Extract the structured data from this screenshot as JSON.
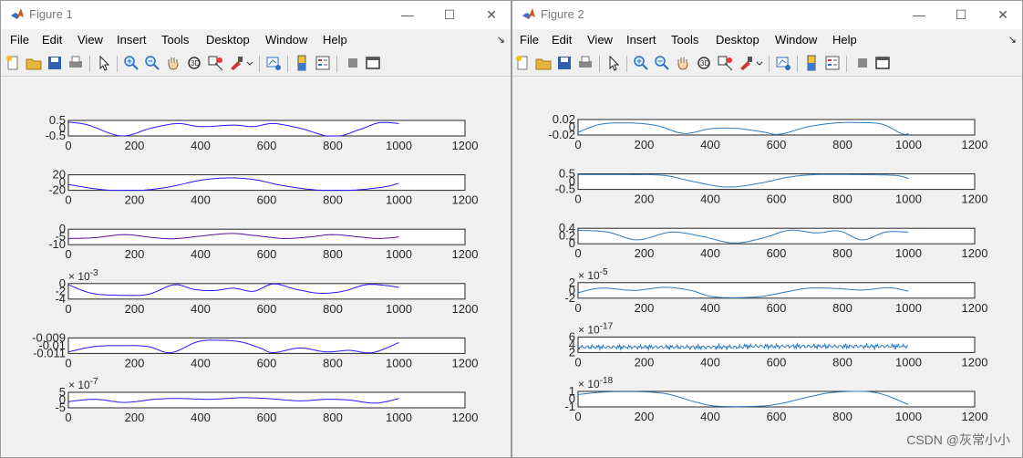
{
  "windows": [
    {
      "title": "Figure 1",
      "menu": [
        "File",
        "Edit",
        "View",
        "Insert",
        "Tools",
        "Desktop",
        "Window",
        "Help"
      ],
      "subplots": [
        {
          "yticks": [
            "0.5",
            "0",
            "-0.5"
          ],
          "xticks": [
            "0",
            "200",
            "400",
            "600",
            "800",
            "1000",
            "1200"
          ],
          "exponent": "",
          "exponent_power": "",
          "ylim": [
            -0.5,
            0.5
          ],
          "color": "#2a14ff",
          "curve": [
            [
              0,
              0.4
            ],
            [
              60,
              0.2
            ],
            [
              160,
              -0.5
            ],
            [
              250,
              0
            ],
            [
              330,
              0.3
            ],
            [
              400,
              0.1
            ],
            [
              500,
              0.2
            ],
            [
              560,
              0.1
            ],
            [
              620,
              0.3
            ],
            [
              700,
              0
            ],
            [
              800,
              -0.55
            ],
            [
              880,
              -0.1
            ],
            [
              940,
              0.35
            ],
            [
              1000,
              0.3
            ]
          ]
        },
        {
          "yticks": [
            "20",
            "0",
            "-20"
          ],
          "xticks": [
            "0",
            "200",
            "400",
            "600",
            "800",
            "1000",
            "1200"
          ],
          "exponent": "",
          "exponent_power": "",
          "ylim": [
            -20,
            20
          ],
          "color": "#2a14ff",
          "curve": [
            [
              0,
              -5
            ],
            [
              100,
              -18
            ],
            [
              200,
              -21
            ],
            [
              300,
              -12
            ],
            [
              400,
              6
            ],
            [
              480,
              12
            ],
            [
              560,
              8
            ],
            [
              650,
              -8
            ],
            [
              750,
              -19
            ],
            [
              850,
              -20
            ],
            [
              950,
              -12
            ],
            [
              1000,
              -2
            ]
          ]
        },
        {
          "yticks": [
            "0",
            "-5",
            "-10"
          ],
          "xticks": [
            "0",
            "200",
            "400",
            "600",
            "800",
            "1000",
            "1200"
          ],
          "exponent": "",
          "exponent_power": "",
          "ylim": [
            -10,
            0
          ],
          "color": "#5a0aa0",
          "curve": [
            [
              0,
              -6
            ],
            [
              80,
              -5.5
            ],
            [
              170,
              -3.5
            ],
            [
              260,
              -5.5
            ],
            [
              330,
              -6
            ],
            [
              480,
              -2.8
            ],
            [
              560,
              -4
            ],
            [
              650,
              -6
            ],
            [
              730,
              -5
            ],
            [
              800,
              -3.5
            ],
            [
              880,
              -5
            ],
            [
              940,
              -6
            ],
            [
              1000,
              -5
            ]
          ]
        },
        {
          "yticks": [
            "0",
            "-2",
            "-4"
          ],
          "xticks": [
            "0",
            "200",
            "400",
            "600",
            "800",
            "1000",
            "1200"
          ],
          "exponent": "× 10",
          "exponent_power": "-3",
          "ylim": [
            -4,
            0
          ],
          "color": "#2a14ff",
          "curve": [
            [
              0,
              -0.3
            ],
            [
              70,
              -2.5
            ],
            [
              150,
              -3
            ],
            [
              240,
              -2.8
            ],
            [
              320,
              -0.3
            ],
            [
              380,
              -1.5
            ],
            [
              440,
              -1.8
            ],
            [
              500,
              -1.2
            ],
            [
              560,
              -2
            ],
            [
              620,
              -0.1
            ],
            [
              690,
              -1.5
            ],
            [
              760,
              -2.5
            ],
            [
              830,
              -2
            ],
            [
              900,
              -0.3
            ],
            [
              960,
              -0.5
            ],
            [
              1000,
              -1
            ]
          ]
        },
        {
          "yticks": [
            "-0.009",
            "-0.01",
            "-0.011"
          ],
          "xticks": [
            "0",
            "200",
            "400",
            "600",
            "800",
            "1000",
            "1200"
          ],
          "exponent": "",
          "exponent_power": "",
          "ylim": [
            -0.011,
            -0.009
          ],
          "color": "#2a14ff",
          "curve": [
            [
              0,
              -0.0108
            ],
            [
              80,
              -0.0101
            ],
            [
              160,
              -0.01
            ],
            [
              240,
              -0.0101
            ],
            [
              310,
              -0.0109
            ],
            [
              390,
              -0.0095
            ],
            [
              450,
              -0.0093
            ],
            [
              520,
              -0.0095
            ],
            [
              580,
              -0.0103
            ],
            [
              620,
              -0.0109
            ],
            [
              700,
              -0.0103
            ],
            [
              780,
              -0.0108
            ],
            [
              850,
              -0.0106
            ],
            [
              920,
              -0.0109
            ],
            [
              1000,
              -0.0096
            ]
          ]
        },
        {
          "yticks": [
            "5",
            "0",
            "-5"
          ],
          "xticks": [
            "0",
            "200",
            "400",
            "600",
            "800",
            "1000",
            "1200"
          ],
          "exponent": "× 10",
          "exponent_power": "-7",
          "ylim": [
            -5,
            5
          ],
          "color": "#2a14ff",
          "curve": [
            [
              0,
              -1
            ],
            [
              80,
              0.5
            ],
            [
              170,
              -1.5
            ],
            [
              260,
              0.5
            ],
            [
              330,
              1
            ],
            [
              430,
              0.5
            ],
            [
              520,
              1.5
            ],
            [
              600,
              1
            ],
            [
              700,
              -0.5
            ],
            [
              780,
              0.5
            ],
            [
              850,
              0
            ],
            [
              930,
              -2
            ],
            [
              1000,
              1
            ]
          ]
        }
      ]
    },
    {
      "title": "Figure 2",
      "menu": [
        "File",
        "Edit",
        "View",
        "Insert",
        "Tools",
        "Desktop",
        "Window",
        "Help"
      ],
      "subplots": [
        {
          "yticks": [
            "0.02",
            "0",
            "-0.02"
          ],
          "xticks": [
            "0",
            "200",
            "400",
            "600",
            "800",
            "1000",
            "1200"
          ],
          "exponent": "",
          "exponent_power": "",
          "ylim": [
            -0.02,
            0.02
          ],
          "color": "#2c7bbd",
          "curve": [
            [
              0,
              -0.013
            ],
            [
              70,
              0.008
            ],
            [
              160,
              0.011
            ],
            [
              240,
              0.004
            ],
            [
              320,
              -0.016
            ],
            [
              400,
              -0.004
            ],
            [
              480,
              -0.003
            ],
            [
              560,
              -0.012
            ],
            [
              610,
              -0.018
            ],
            [
              700,
              0.002
            ],
            [
              780,
              0.011
            ],
            [
              850,
              0.012
            ],
            [
              920,
              0.008
            ],
            [
              980,
              -0.017
            ],
            [
              1000,
              -0.016
            ]
          ]
        },
        {
          "yticks": [
            "0.5",
            "0",
            "-0.5"
          ],
          "xticks": [
            "0",
            "200",
            "400",
            "600",
            "800",
            "1000",
            "1200"
          ],
          "exponent": "",
          "exponent_power": "",
          "ylim": [
            -0.5,
            0.5
          ],
          "color": "#2c7bbd",
          "curve": [
            [
              0,
              0.45
            ],
            [
              150,
              0.45
            ],
            [
              260,
              0.4
            ],
            [
              350,
              0
            ],
            [
              450,
              -0.35
            ],
            [
              550,
              -0.1
            ],
            [
              640,
              0.3
            ],
            [
              720,
              0.45
            ],
            [
              850,
              0.45
            ],
            [
              960,
              0.4
            ],
            [
              1000,
              0.2
            ]
          ]
        },
        {
          "yticks": [
            "0.4",
            "0.2",
            "0"
          ],
          "xticks": [
            "0",
            "200",
            "400",
            "600",
            "800",
            "1000",
            "1200"
          ],
          "exponent": "",
          "exponent_power": "",
          "ylim": [
            0,
            0.4
          ],
          "color": "#2c7bbd",
          "curve": [
            [
              0,
              0.35
            ],
            [
              90,
              0.3
            ],
            [
              180,
              0.1
            ],
            [
              280,
              0.3
            ],
            [
              370,
              0.2
            ],
            [
              470,
              0.02
            ],
            [
              560,
              0.15
            ],
            [
              640,
              0.35
            ],
            [
              720,
              0.28
            ],
            [
              790,
              0.33
            ],
            [
              860,
              0.1
            ],
            [
              930,
              0.3
            ],
            [
              1000,
              0.3
            ]
          ]
        },
        {
          "yticks": [
            "2",
            "0",
            "-2"
          ],
          "xticks": [
            "0",
            "200",
            "400",
            "600",
            "800",
            "1000",
            "1200"
          ],
          "exponent": "× 10",
          "exponent_power": "-5",
          "ylim": [
            -2,
            2
          ],
          "color": "#2c7bbd",
          "curve": [
            [
              0,
              -0.6
            ],
            [
              70,
              0.6
            ],
            [
              170,
              0
            ],
            [
              260,
              0.8
            ],
            [
              340,
              0
            ],
            [
              400,
              -1.5
            ],
            [
              470,
              -1.9
            ],
            [
              560,
              -1.5
            ],
            [
              640,
              -0.2
            ],
            [
              700,
              0.6
            ],
            [
              780,
              0.5
            ],
            [
              860,
              0.1
            ],
            [
              940,
              0.7
            ],
            [
              1000,
              -0.2
            ]
          ]
        },
        {
          "yticks": [
            "6",
            "4",
            "2"
          ],
          "xticks": [
            "0",
            "200",
            "400",
            "600",
            "800",
            "1000",
            "1200"
          ],
          "exponent": "× 10",
          "exponent_power": "-17",
          "ylim": [
            2,
            6
          ],
          "color": "#2c7bbd",
          "curve": [
            [
              0,
              3.4
            ],
            [
              500,
              3.3
            ],
            [
              600,
              3.4
            ],
            [
              1000,
              3.6
            ]
          ]
        },
        {
          "yticks": [
            "1",
            "0",
            "-1"
          ],
          "xticks": [
            "0",
            "200",
            "400",
            "600",
            "800",
            "1000",
            "1200"
          ],
          "exponent": "× 10",
          "exponent_power": "-18",
          "ylim": [
            -1,
            1
          ],
          "color": "#2c7bbd",
          "curve": [
            [
              0,
              0.6
            ],
            [
              100,
              0.95
            ],
            [
              250,
              0.8
            ],
            [
              350,
              -0.3
            ],
            [
              420,
              -0.9
            ],
            [
              550,
              -0.9
            ],
            [
              620,
              -0.5
            ],
            [
              700,
              0.3
            ],
            [
              780,
              0.9
            ],
            [
              900,
              0.85
            ],
            [
              1000,
              -0.7
            ]
          ]
        }
      ]
    }
  ],
  "watermark": "CSDN @灰常小小",
  "colors": {
    "titlebar": "#ffffff",
    "chrome": "#f0f0f0",
    "axes": "#262626"
  }
}
